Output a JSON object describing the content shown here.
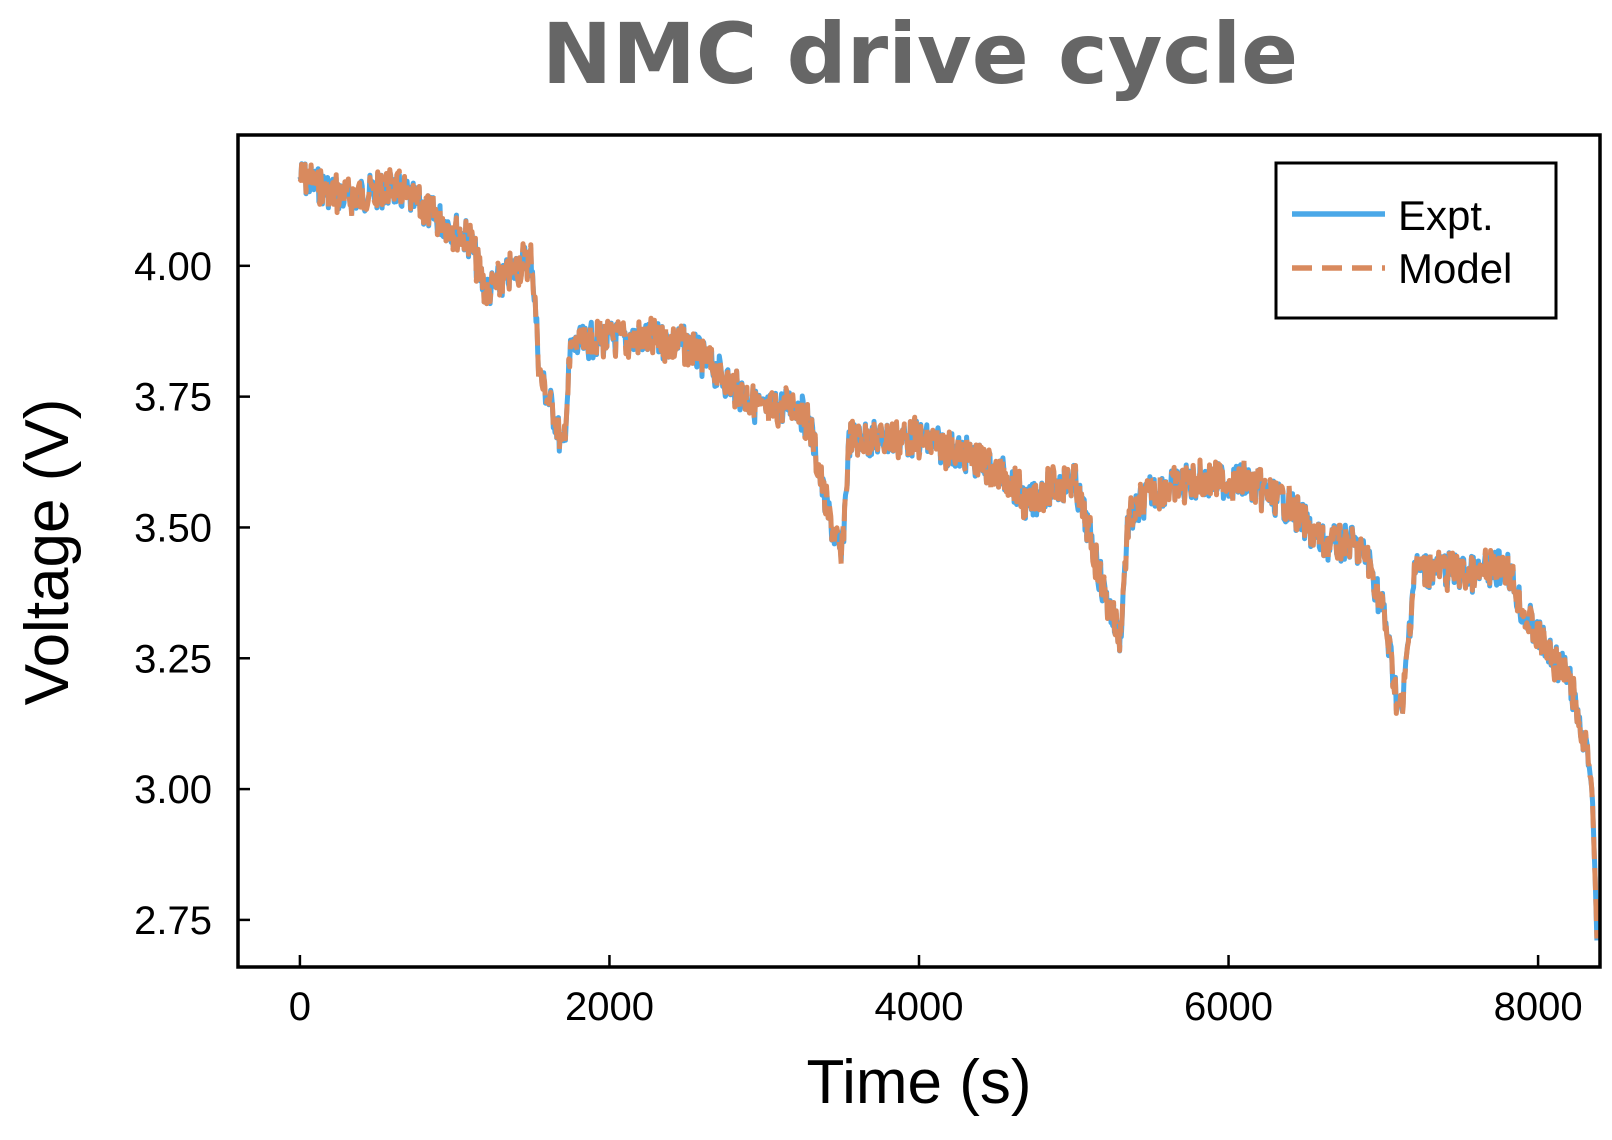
{
  "chart_data": {
    "type": "line",
    "title": "NMC drive cycle",
    "xlabel": "Time (s)",
    "ylabel": "Voltage (V)",
    "xlim": [
      -400,
      8400
    ],
    "ylim": [
      2.66,
      4.25
    ],
    "x_ticks": [
      0,
      2000,
      4000,
      6000,
      8000
    ],
    "x_tick_labels": [
      "0",
      "2000",
      "4000",
      "6000",
      "8000"
    ],
    "y_ticks": [
      2.75,
      3.0,
      3.25,
      3.5,
      3.75,
      4.0
    ],
    "y_tick_labels": [
      "2.75",
      "3.00",
      "3.25",
      "3.50",
      "3.75",
      "4.00"
    ],
    "grid": false,
    "legend_position": "top-right",
    "envelope": {
      "x": [
        0,
        300,
        600,
        900,
        1100,
        1200,
        1300,
        1450,
        1500,
        1550,
        1650,
        1700,
        1750,
        1900,
        2200,
        2500,
        2800,
        3000,
        3200,
        3300,
        3400,
        3500,
        3550,
        3700,
        4000,
        4300,
        4600,
        4700,
        4800,
        5000,
        5100,
        5200,
        5300,
        5350,
        5500,
        5800,
        6100,
        6400,
        6600,
        6800,
        6900,
        7000,
        7080,
        7120,
        7200,
        7400,
        7600,
        7800,
        7900,
        8050,
        8200,
        8300,
        8350,
        8380
      ],
      "y": [
        4.18,
        4.14,
        4.16,
        4.1,
        4.06,
        3.96,
        3.98,
        4.02,
        4.02,
        3.8,
        3.72,
        3.65,
        3.85,
        3.87,
        3.87,
        3.86,
        3.78,
        3.73,
        3.75,
        3.7,
        3.55,
        3.45,
        3.68,
        3.68,
        3.68,
        3.65,
        3.6,
        3.55,
        3.58,
        3.6,
        3.5,
        3.38,
        3.3,
        3.52,
        3.58,
        3.6,
        3.6,
        3.55,
        3.48,
        3.48,
        3.45,
        3.35,
        3.2,
        3.15,
        3.43,
        3.43,
        3.42,
        3.44,
        3.35,
        3.28,
        3.22,
        3.1,
        3.0,
        2.72
      ],
      "noise_amplitude": 0.07
    },
    "series": [
      {
        "name": "Expt.",
        "color": "#4AA8E8",
        "style": "solid"
      },
      {
        "name": "Model",
        "color": "#D98A5E",
        "style": "dashed"
      }
    ]
  }
}
